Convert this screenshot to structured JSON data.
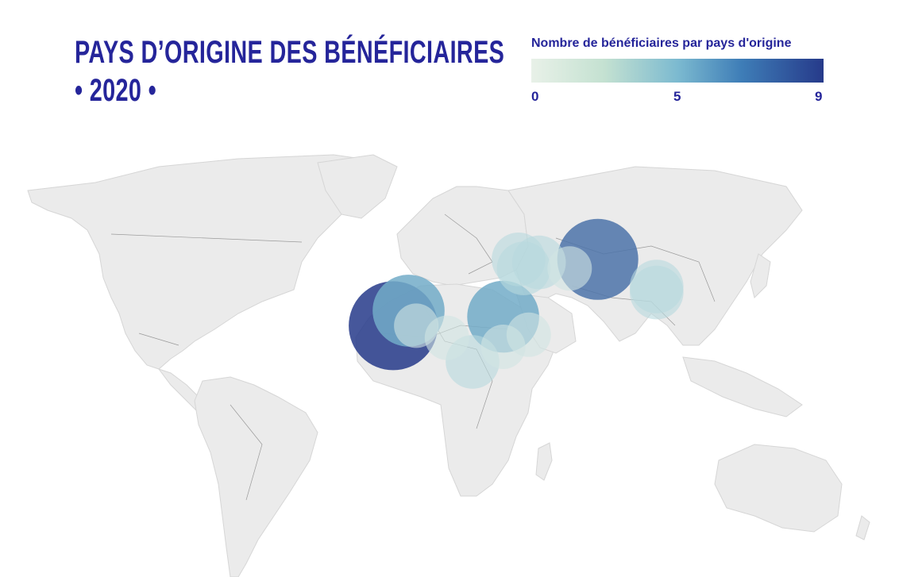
{
  "title": {
    "line1": "PAYS D’ORIGINE DES BÉNÉFICIAIRES",
    "line2": "• 2020 •"
  },
  "legend": {
    "title": "Nombre de bénéficiaires par pays d'origine",
    "ticks": [
      "0",
      "5",
      "9"
    ],
    "min": 0,
    "max": 9,
    "colors": [
      "#e8f1e8",
      "#7cbad0",
      "#263a8a"
    ]
  },
  "map_data": {
    "type": "bubble-map",
    "bubbles": [
      {
        "lon": -13,
        "lat": 12,
        "value": 9
      },
      {
        "lon": 67,
        "lat": 34,
        "value": 7
      },
      {
        "lon": -7,
        "lat": 17,
        "value": 5
      },
      {
        "lon": 30,
        "lat": 15,
        "value": 5
      },
      {
        "lon": 36,
        "lat": 34,
        "value": 2
      },
      {
        "lon": 44,
        "lat": 33,
        "value": 2
      },
      {
        "lon": 38,
        "lat": 31,
        "value": 2
      },
      {
        "lon": 90,
        "lat": 25,
        "value": 2
      },
      {
        "lon": 90,
        "lat": 23,
        "value": 2
      },
      {
        "lon": 18,
        "lat": 0,
        "value": 2
      },
      {
        "lon": 56,
        "lat": 31,
        "value": 1
      },
      {
        "lon": 40,
        "lat": 9,
        "value": 1
      },
      {
        "lon": 30,
        "lat": 5,
        "value": 1
      },
      {
        "lon": 8,
        "lat": 8,
        "value": 1
      },
      {
        "lon": -4,
        "lat": 12,
        "value": 1
      }
    ]
  }
}
